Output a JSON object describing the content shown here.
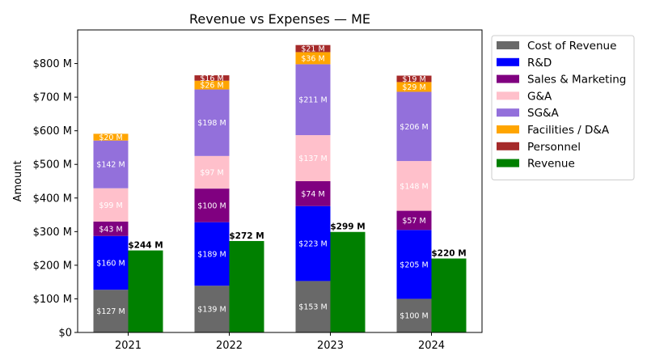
{
  "chart_data": {
    "type": "bar",
    "title": "Revenue vs Expenses — ME",
    "xlabel": "",
    "ylabel": "Amount",
    "ylim": [
      0,
      900
    ],
    "yticks": [
      0,
      100,
      200,
      300,
      400,
      500,
      600,
      700,
      800
    ],
    "ytick_labels": [
      "$0",
      "$100 M",
      "$200 M",
      "$300 M",
      "$400 M",
      "$500 M",
      "$600 M",
      "$700 M",
      "$800 M"
    ],
    "categories": [
      "2021",
      "2022",
      "2023",
      "2024"
    ],
    "unit_suffix": " M",
    "currency_prefix": "$",
    "legend_position": "outside-top-right",
    "expense_series": [
      {
        "name": "Cost of Revenue",
        "color": "#696969",
        "values": [
          127,
          139,
          153,
          100
        ]
      },
      {
        "name": "R&D",
        "color": "#0000ff",
        "values": [
          160,
          189,
          223,
          205
        ]
      },
      {
        "name": "Sales & Marketing",
        "color": "#800080",
        "values": [
          43,
          100,
          74,
          57
        ]
      },
      {
        "name": "G&A",
        "color": "#ffc0cb",
        "values": [
          99,
          97,
          137,
          148
        ]
      },
      {
        "name": "SG&A",
        "color": "#9370db",
        "values": [
          142,
          198,
          211,
          206
        ]
      },
      {
        "name": "Facilities / D&A",
        "color": "#ffa500",
        "values": [
          20,
          26,
          36,
          29
        ]
      },
      {
        "name": "Personnel",
        "color": "#a52a2a",
        "values": [
          0,
          16,
          21,
          19
        ]
      }
    ],
    "revenue_series": {
      "name": "Revenue",
      "color": "#008000",
      "values": [
        244,
        272,
        299,
        220
      ]
    }
  }
}
